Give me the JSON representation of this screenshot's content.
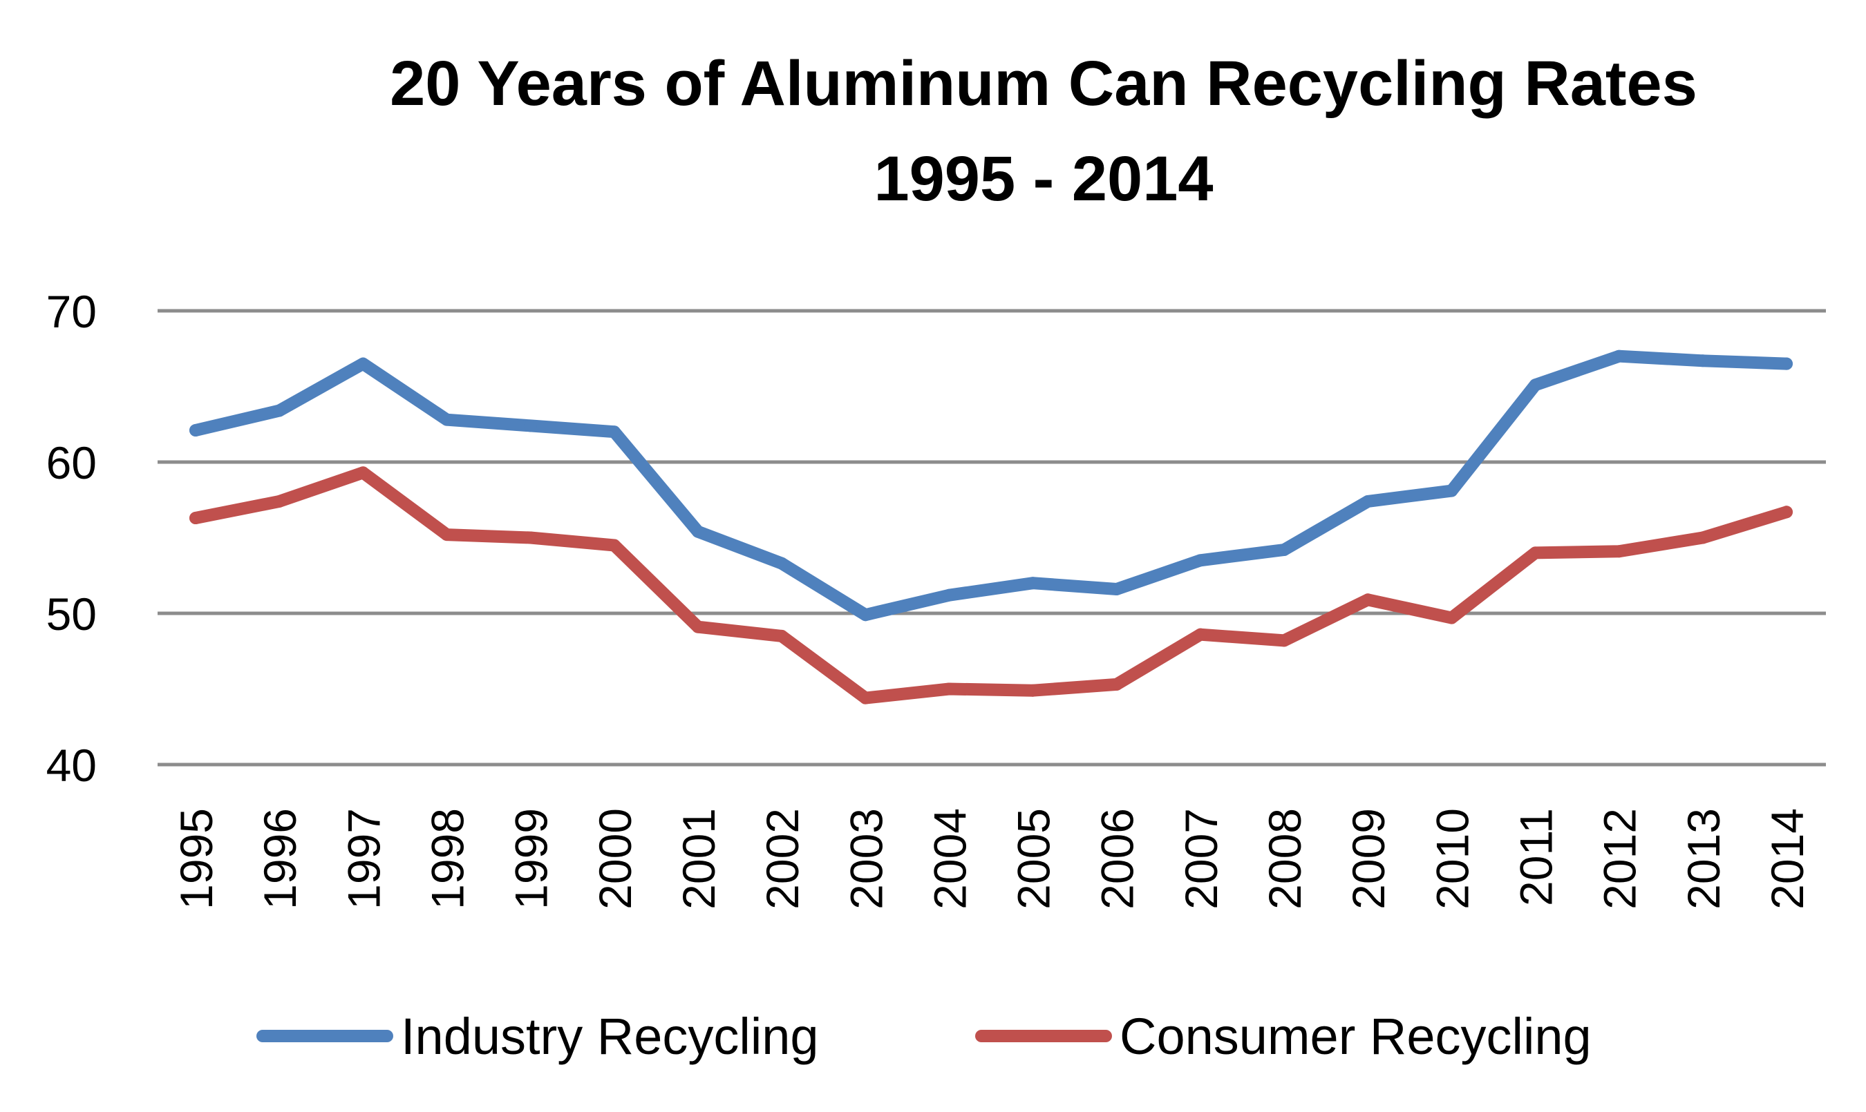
{
  "chart_data": {
    "type": "line",
    "title": "20 Years of Aluminum Can Recycling Rates",
    "subtitle": "1995 - 2014",
    "xlabel": "",
    "ylabel": "",
    "ylim": [
      40,
      70
    ],
    "y_ticks": [
      "40",
      "50",
      "60",
      "70"
    ],
    "grid": true,
    "legend_position": "bottom",
    "categories": [
      "1995",
      "1996",
      "1997",
      "1998",
      "1999",
      "2000",
      "2001",
      "2002",
      "2003",
      "2004",
      "2005",
      "2006",
      "2007",
      "2008",
      "2009",
      "2010",
      "2011",
      "2012",
      "2013",
      "2014"
    ],
    "series": [
      {
        "name": "Industry Recycling",
        "color": "#4F81BD",
        "values": [
          62.1,
          63.4,
          66.5,
          62.8,
          62.4,
          62.0,
          55.4,
          53.3,
          49.9,
          51.2,
          52.0,
          51.6,
          53.5,
          54.2,
          57.4,
          58.1,
          65.1,
          67.0,
          66.7,
          66.5
        ]
      },
      {
        "name": "Consumer Recycling",
        "color": "#C0504D",
        "values": [
          56.3,
          57.4,
          59.3,
          55.2,
          55.0,
          54.5,
          49.1,
          48.5,
          44.4,
          45.0,
          44.9,
          45.3,
          48.6,
          48.2,
          50.9,
          49.7,
          54.0,
          54.1,
          55.0,
          56.7
        ]
      }
    ]
  }
}
